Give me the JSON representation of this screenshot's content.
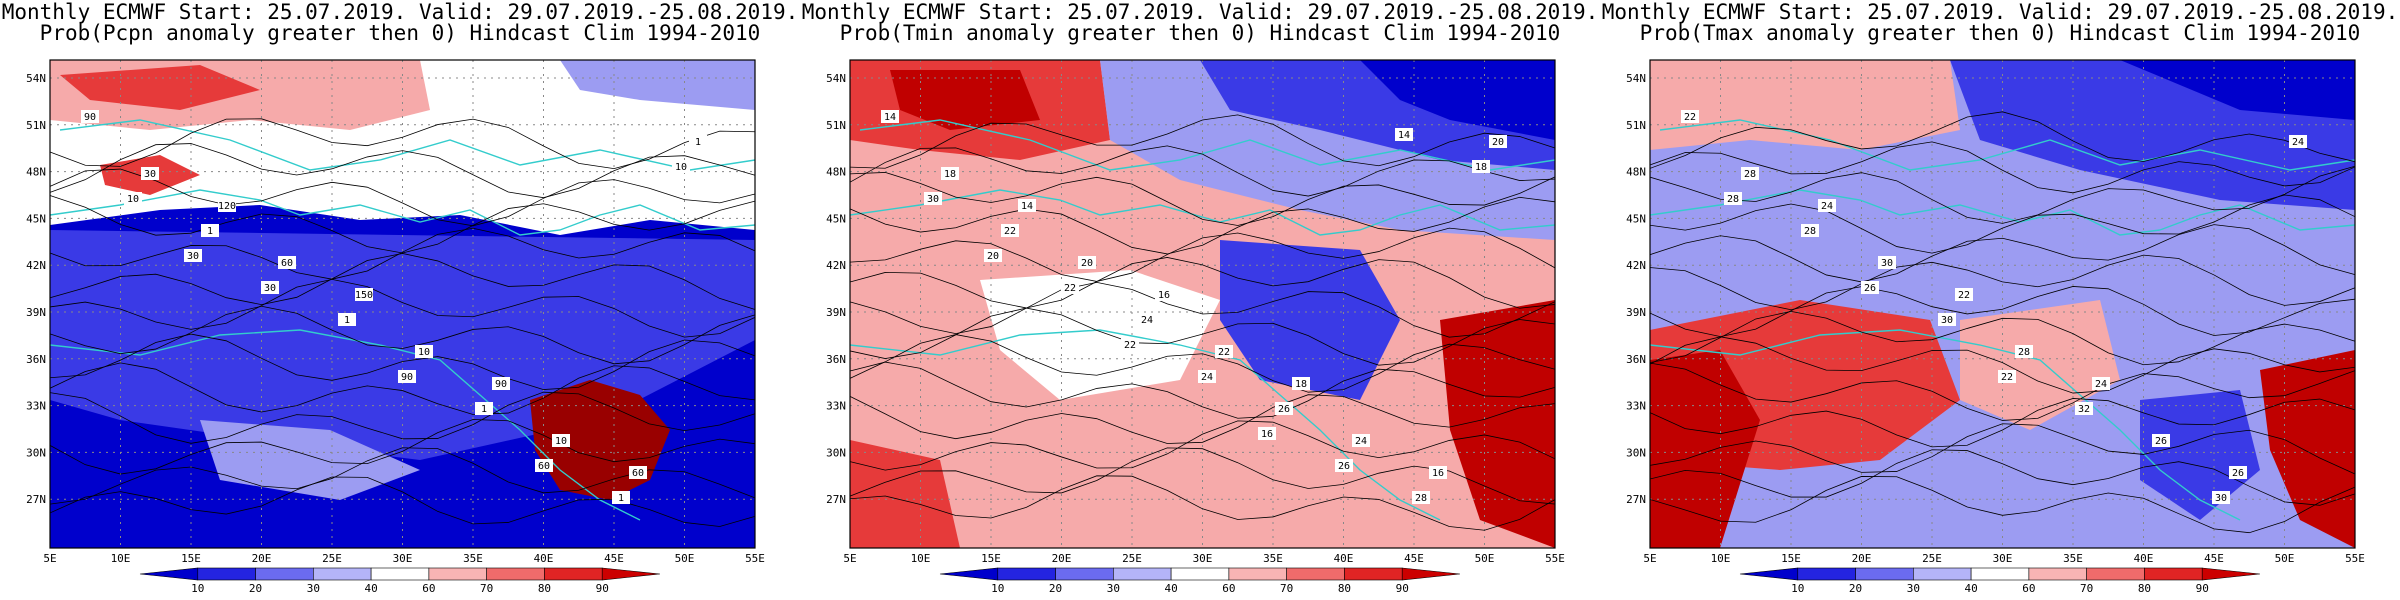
{
  "panels": [
    {
      "title1": "Monthly ECMWF Start: 25.07.2019. Valid: 29.07.2019.-25.08.2019.",
      "title2": "Prob(Pcpn anomaly greater then 0) Hindcast Clim 1994-2010",
      "contour_labels": [
        "90",
        "120",
        "150",
        "90",
        "60",
        "30",
        "60",
        "10",
        "10",
        "1",
        "1",
        "1",
        "1",
        "1",
        "10",
        "30",
        "90",
        "60",
        "10",
        "30"
      ]
    },
    {
      "title1": "Monthly ECMWF Start: 25.07.2019. Valid: 29.07.2019.-25.08.2019.",
      "title2": "Prob(Tmin anomaly greater then 0) Hindcast Clim 1994-2010",
      "contour_labels": [
        "14",
        "14",
        "16",
        "18",
        "16",
        "18",
        "20",
        "22",
        "24",
        "20",
        "22",
        "24",
        "26",
        "28",
        "30",
        "22",
        "24",
        "26",
        "18",
        "20",
        "22",
        "16",
        "14"
      ]
    },
    {
      "title1": "Monthly ECMWF Start: 25.07.2019. Valid: 29.07.2019.-25.08.2019.",
      "title2": "Prob(Tmax anomaly greater then 0) Hindcast Clim 1994-2010",
      "contour_labels": [
        "22",
        "24",
        "22",
        "24",
        "26",
        "28",
        "30",
        "28",
        "26",
        "24",
        "28",
        "30",
        "32",
        "30",
        "28",
        "26",
        "22"
      ]
    }
  ],
  "lat_ticks": [
    "54N",
    "51N",
    "48N",
    "45N",
    "42N",
    "39N",
    "36N",
    "33N",
    "30N",
    "27N"
  ],
  "lon_ticks": [
    "5E",
    "10E",
    "15E",
    "20E",
    "25E",
    "30E",
    "35E",
    "40E",
    "45E",
    "50E",
    "55E"
  ],
  "colorbar": {
    "labels": [
      "10",
      "20",
      "30",
      "40",
      "60",
      "70",
      "80",
      "90"
    ],
    "colors": [
      "#0000cc",
      "#2424e0",
      "#6b6bf0",
      "#b4b4f8",
      "#ffffff",
      "#f8b4b4",
      "#f06b6b",
      "#e02424",
      "#cc0000"
    ]
  },
  "colors": {
    "deep_blue": "#0000cc",
    "blue": "#3a3ae6",
    "light_blue": "#9c9cf2",
    "white": "#ffffff",
    "light_red": "#f6aaaa",
    "red": "#e63a3a",
    "deep_red": "#c00000",
    "dark_red": "#990000",
    "coast": "#33cccc",
    "contour": "#000000"
  }
}
